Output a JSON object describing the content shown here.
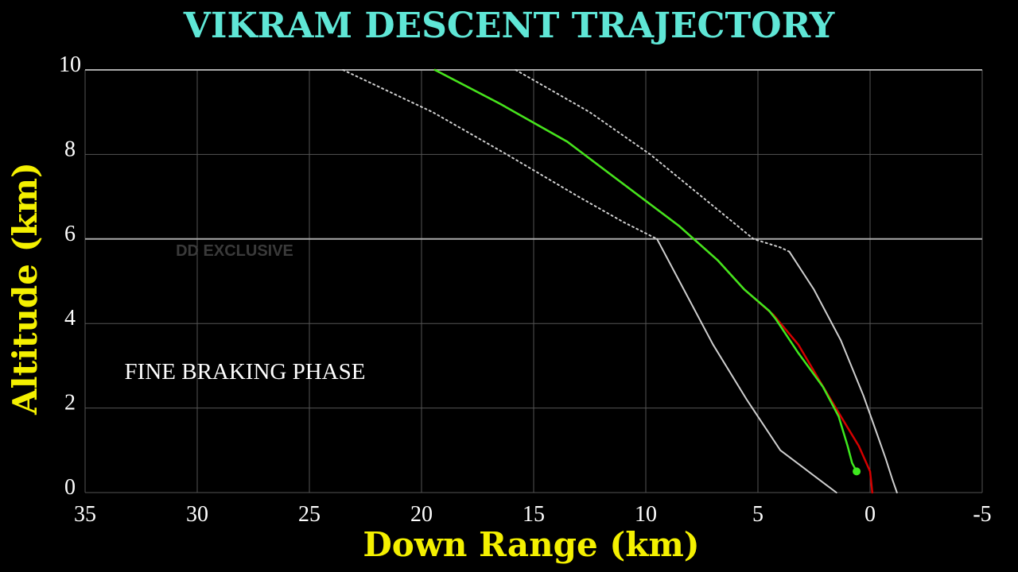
{
  "chart_data": {
    "type": "line",
    "title": "VIKRAM DESCENT TRAJECTORY",
    "xlabel": "Down Range (km)",
    "ylabel": "Altitude (km)",
    "annotation": "FINE BRAKING PHASE",
    "watermark": "DD EXCLUSIVE",
    "xlim": [
      35,
      -5
    ],
    "ylim": [
      0,
      10
    ],
    "x_ticks": [
      35,
      30,
      25,
      20,
      15,
      10,
      5,
      0,
      -5
    ],
    "y_ticks": [
      0,
      2,
      4,
      6,
      8,
      10
    ],
    "grid": true,
    "legend": "none",
    "colors": {
      "title": "#5fe6d6",
      "axis_title": "#f4f000",
      "tick": "#ffffff",
      "grid": "#555555",
      "grid_major": "#aaaaaa"
    },
    "series": [
      {
        "style": "dotted",
        "color": "#cfcfcf",
        "x": [
          23.5,
          19.5,
          16.2,
          13.0,
          11.0,
          9.5
        ],
        "y": [
          10.0,
          9.0,
          8.0,
          7.0,
          6.4,
          6.0
        ]
      },
      {
        "style": "solid",
        "color": "#cfcfcf",
        "x": [
          9.5,
          8.5,
          7.0,
          5.5,
          4.0,
          3.0,
          2.0,
          1.5
        ],
        "y": [
          6.0,
          5.0,
          3.5,
          2.2,
          1.0,
          0.6,
          0.2,
          0.0
        ]
      },
      {
        "style": "dotted",
        "color": "#cfcfcf",
        "x": [
          15.8,
          12.5,
          9.8,
          7.5,
          5.2,
          4.0,
          3.6
        ],
        "y": [
          10.0,
          9.0,
          8.0,
          7.0,
          6.0,
          5.8,
          5.7
        ]
      },
      {
        "style": "solid",
        "color": "#cfcfcf",
        "x": [
          3.6,
          2.5,
          1.3,
          0.3,
          -0.3,
          -0.7,
          -1.0,
          -1.2
        ],
        "y": [
          5.7,
          4.8,
          3.6,
          2.3,
          1.4,
          0.8,
          0.3,
          0.0
        ]
      },
      {
        "style": "solid",
        "color": "#d40000",
        "x": [
          19.4,
          16.5,
          13.5,
          11.0,
          8.5,
          6.8,
          5.6,
          4.3,
          3.2,
          2.2,
          1.3,
          0.5,
          0.0,
          -0.1
        ],
        "y": [
          10.0,
          9.2,
          8.3,
          7.3,
          6.3,
          5.5,
          4.8,
          4.2,
          3.5,
          2.6,
          1.8,
          1.1,
          0.5,
          0.0
        ]
      },
      {
        "style": "solid",
        "color": "#3ee81e",
        "x": [
          19.4,
          16.5,
          13.5,
          11.0,
          8.5,
          6.8,
          5.6,
          4.5,
          4.2,
          3.2,
          2.1,
          1.4,
          1.0,
          0.8,
          0.6
        ],
        "y": [
          10.0,
          9.2,
          8.3,
          7.3,
          6.3,
          5.5,
          4.8,
          4.3,
          4.1,
          3.3,
          2.5,
          1.8,
          1.1,
          0.7,
          0.5
        ]
      }
    ],
    "marker": {
      "x": 0.6,
      "y": 0.5,
      "color": "#3ee81e"
    }
  }
}
